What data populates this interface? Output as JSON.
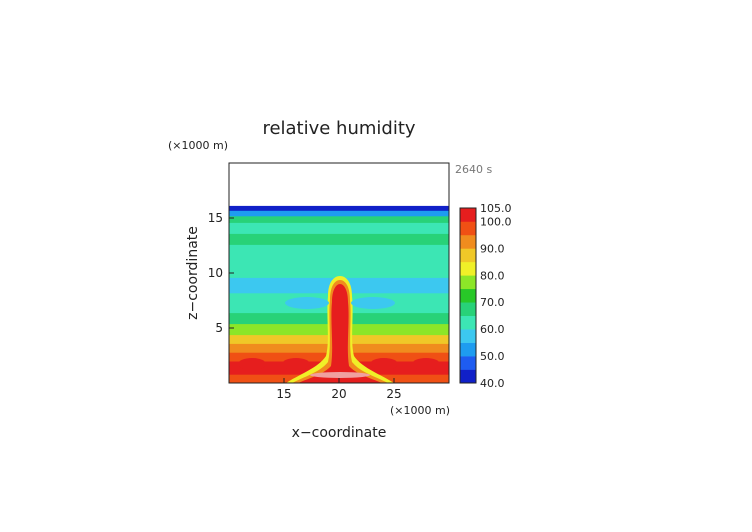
{
  "chart_data": {
    "type": "heatmap",
    "title": "relative humidity",
    "time_label": "2640 s",
    "xlabel": "x−coordinate",
    "ylabel": "z−coordinate",
    "x_unit": "(×1000 m)",
    "y_unit": "(×1000 m)",
    "xlim": [
      10,
      30
    ],
    "ylim": [
      0,
      20
    ],
    "x_ticks": [
      "15",
      "20",
      "25"
    ],
    "y_ticks": [
      "5",
      "10",
      "15"
    ],
    "x_tick_values": [
      15,
      20,
      25
    ],
    "y_tick_values": [
      5,
      10,
      15
    ],
    "colorbar": {
      "levels": [
        40,
        45,
        50,
        55,
        60,
        65,
        70,
        75,
        80,
        85,
        90,
        95,
        100,
        105
      ],
      "labels": [
        "105.0",
        "100.0",
        "90.0",
        "80.0",
        "70.0",
        "60.0",
        "50.0",
        "40.0"
      ],
      "label_values": [
        105,
        100,
        90,
        80,
        70,
        60,
        50,
        40
      ],
      "colors": [
        "#1020c8",
        "#1e5cf0",
        "#1e9cf0",
        "#3cc8f0",
        "#3ce6b4",
        "#28d278",
        "#28c828",
        "#8ce628",
        "#f0f028",
        "#f0c828",
        "#f08c1e",
        "#f05014",
        "#e61e1e",
        "#f0a0a0"
      ]
    }
  }
}
